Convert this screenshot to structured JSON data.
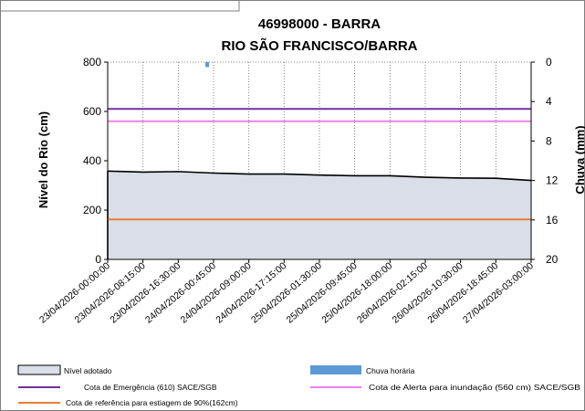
{
  "chart_data": {
    "type": "line",
    "title_line1": "46998000 - BARRA",
    "title_line2": "RIO SÃO FRANCISCO/BARRA",
    "ylabel_left": "Nível do Rio (cm)",
    "ylabel_right": "Chuva (mm)",
    "ylim_left": [
      0,
      800
    ],
    "yticks_left": [
      "0",
      "200",
      "400",
      "600",
      "800"
    ],
    "ylim_right": [
      0,
      20
    ],
    "yticks_right": [
      "0",
      "4",
      "8",
      "12",
      "16",
      "20"
    ],
    "right_axis_inverted": true,
    "x_tick_labels": [
      "23/04/2026-00:00:00",
      "23/04/2026-08:15:00",
      "23/04/2026-16:30:00",
      "24/04/2026-00:45:00",
      "24/04/2026-09:00:00",
      "24/04/2026-17:15:00",
      "25/04/2026-01:30:00",
      "25/04/2026-09:45:00",
      "25/04/2026-18:00:00",
      "26/04/2026-02:15:00",
      "26/04/2026-10:30:00",
      "26/04/2026-18:45:00",
      "27/04/2026-03:00:00"
    ],
    "series": [
      {
        "name": "Nível adotado",
        "kind": "area",
        "values": [
          358,
          354,
          356,
          350,
          346,
          346,
          342,
          339,
          339,
          333,
          330,
          329,
          320
        ]
      },
      {
        "name": "Chuva horária",
        "kind": "bar-right-axis",
        "points": [
          {
            "x": "24/04/2026-00:45:00",
            "value": 0.5
          }
        ]
      },
      {
        "name": "Cota de Emergência (610) SACE/SGB",
        "kind": "hline",
        "value": 610
      },
      {
        "name": "Cota de Alerta para inundação (560 cm) SACE/SGB",
        "kind": "hline",
        "value": 560
      },
      {
        "name": "Cota de referência para estiagem de 90%(162cm)",
        "kind": "hline",
        "value": 162
      }
    ],
    "colors": {
      "area_fill": "#d9dee8",
      "area_stroke": "#000000",
      "rain": "#5b9bd5",
      "emergency": "#7030a0",
      "alert": "#ee82ee",
      "drought": "#ed7d31"
    },
    "grid": "vertical-dotted",
    "legend_position": "bottom"
  }
}
